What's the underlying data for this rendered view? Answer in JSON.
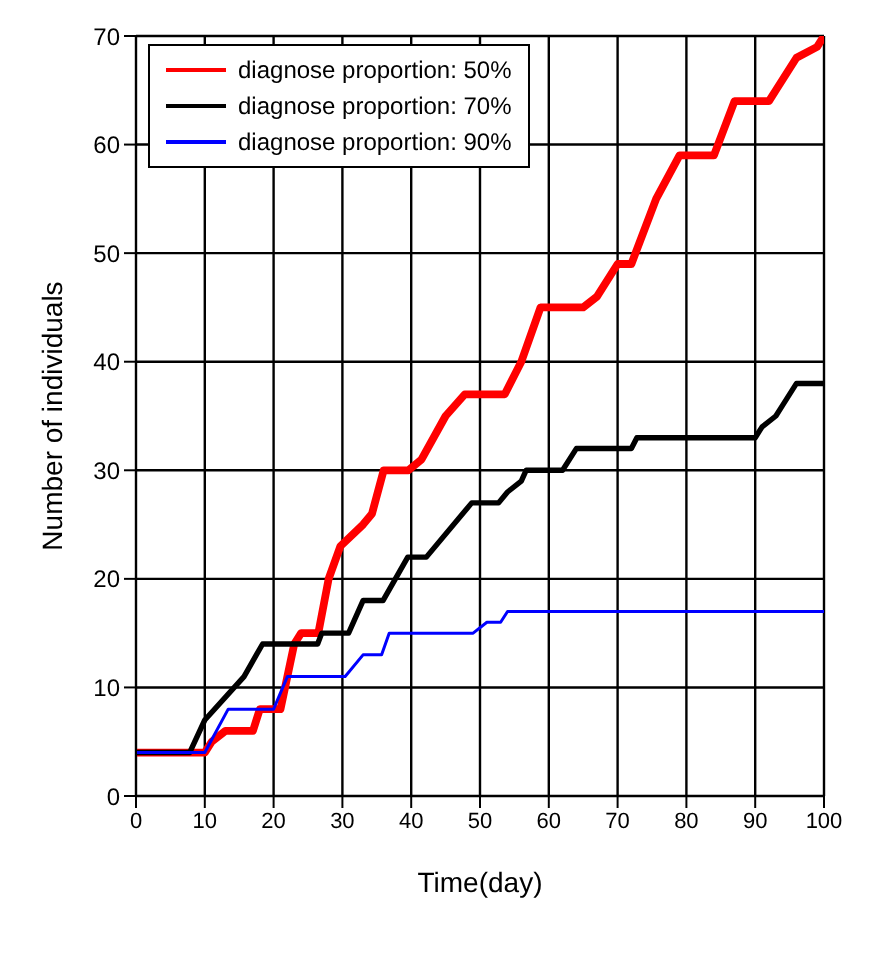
{
  "chart_data": {
    "type": "line",
    "xlabel": "Time(day)",
    "ylabel": "Number of individuals",
    "xlim": [
      0,
      100
    ],
    "ylim": [
      0,
      70
    ],
    "xticks": [
      0,
      10,
      20,
      30,
      40,
      50,
      60,
      70,
      80,
      90,
      100
    ],
    "yticks": [
      0,
      10,
      20,
      30,
      40,
      50,
      60,
      70
    ],
    "grid": true,
    "legend": "top left",
    "marker": "none",
    "line_style": "solid",
    "series": [
      {
        "name": "diagnose proportion: 50%",
        "color": "#ff0000",
        "x": [
          0,
          10,
          11,
          13,
          17,
          18,
          21,
          23,
          24,
          26.5,
          28,
          29.7,
          33,
          34.3,
          36,
          39.6,
          41.5,
          45,
          47.8,
          53.6,
          56,
          58.8,
          65,
          67,
          70,
          72,
          75.6,
          79,
          84,
          87,
          92,
          93,
          96,
          99,
          100
        ],
        "values": [
          4,
          4,
          5,
          6,
          6,
          8,
          8,
          14,
          15,
          15,
          20,
          23,
          25,
          26,
          30,
          30,
          31,
          35,
          37,
          37,
          40,
          45,
          45,
          46,
          49,
          49,
          55,
          59,
          59,
          64,
          64,
          65,
          68,
          69,
          70
        ]
      },
      {
        "name": "diagnose proportion: 70%",
        "color": "#000000",
        "x": [
          0,
          7.8,
          10,
          15.7,
          18.4,
          26.4,
          27,
          30.9,
          33,
          35.9,
          39.5,
          42.2,
          48.8,
          52.7,
          54,
          56,
          56.7,
          62,
          64,
          72,
          72.8,
          90,
          91,
          93,
          94,
          96,
          100
        ],
        "values": [
          4,
          4,
          7,
          11,
          14,
          14,
          15,
          15,
          18,
          18,
          22,
          22,
          27,
          27,
          28,
          29,
          30,
          30,
          32,
          32,
          33,
          33,
          34,
          35,
          36,
          38,
          38
        ]
      },
      {
        "name": "diagnose proportion: 90%",
        "color": "#0000ff",
        "x": [
          0,
          10,
          13.4,
          20,
          22,
          30.4,
          33,
          35.7,
          36.8,
          49,
          51,
          53,
          54,
          100
        ],
        "values": [
          4,
          4,
          8,
          8,
          11,
          11,
          13,
          13,
          15,
          15,
          16,
          16,
          17,
          17
        ]
      }
    ]
  }
}
